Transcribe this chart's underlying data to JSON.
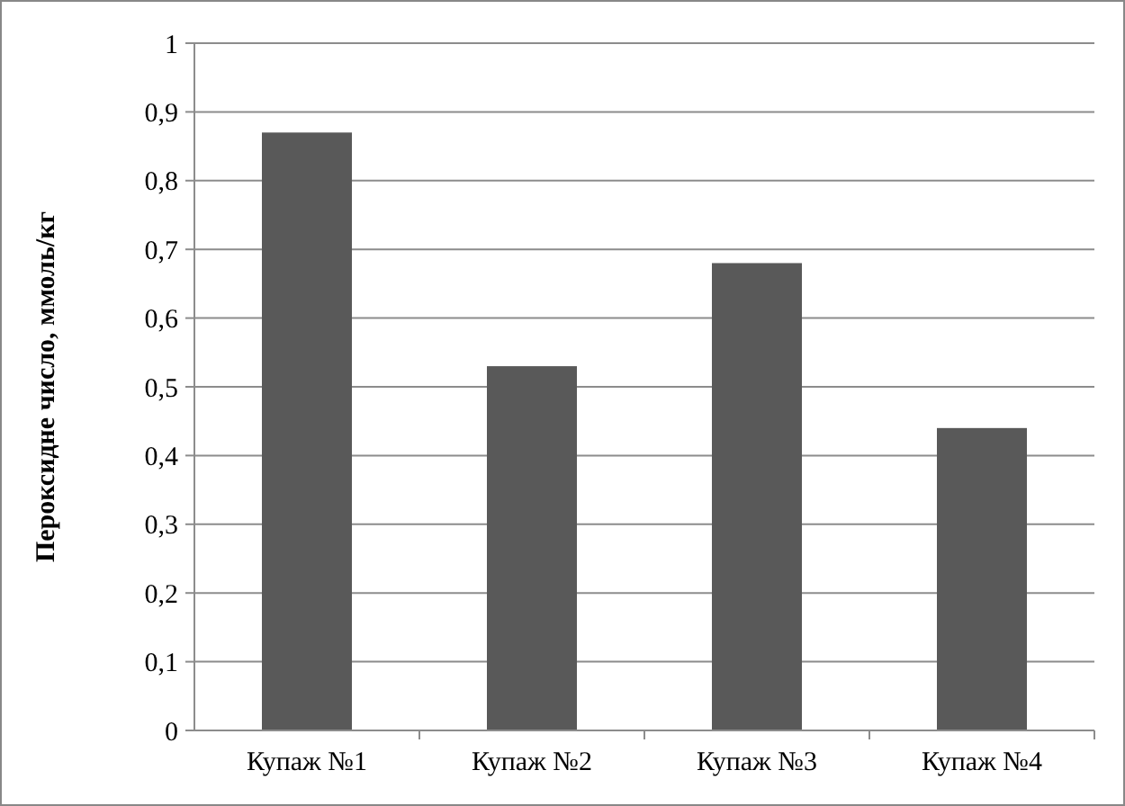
{
  "chart_data": {
    "type": "bar",
    "ylabel": "Пероксидне число, ммоль/кг",
    "categories": [
      "Купаж №1",
      "Купаж №2",
      "Купаж №3",
      "Купаж №4"
    ],
    "values": [
      0.87,
      0.53,
      0.68,
      0.44
    ],
    "color": "#595959",
    "ylim": [
      0,
      1
    ],
    "yticks": [
      0,
      {
        "value": 0.1,
        "label": "0,1"
      },
      {
        "value": 0.2,
        "label": "0,2"
      },
      {
        "value": 0.3,
        "label": "0,3"
      },
      {
        "value": 0.4,
        "label": "0,4"
      },
      {
        "value": 0.5,
        "label": "0,5"
      },
      {
        "value": 0.6,
        "label": "0,6"
      },
      {
        "value": 0.7,
        "label": "0,7"
      },
      {
        "value": 0.8,
        "label": "0,8"
      },
      {
        "value": 0.9,
        "label": "0,9"
      },
      1
    ],
    "grid": "y"
  }
}
